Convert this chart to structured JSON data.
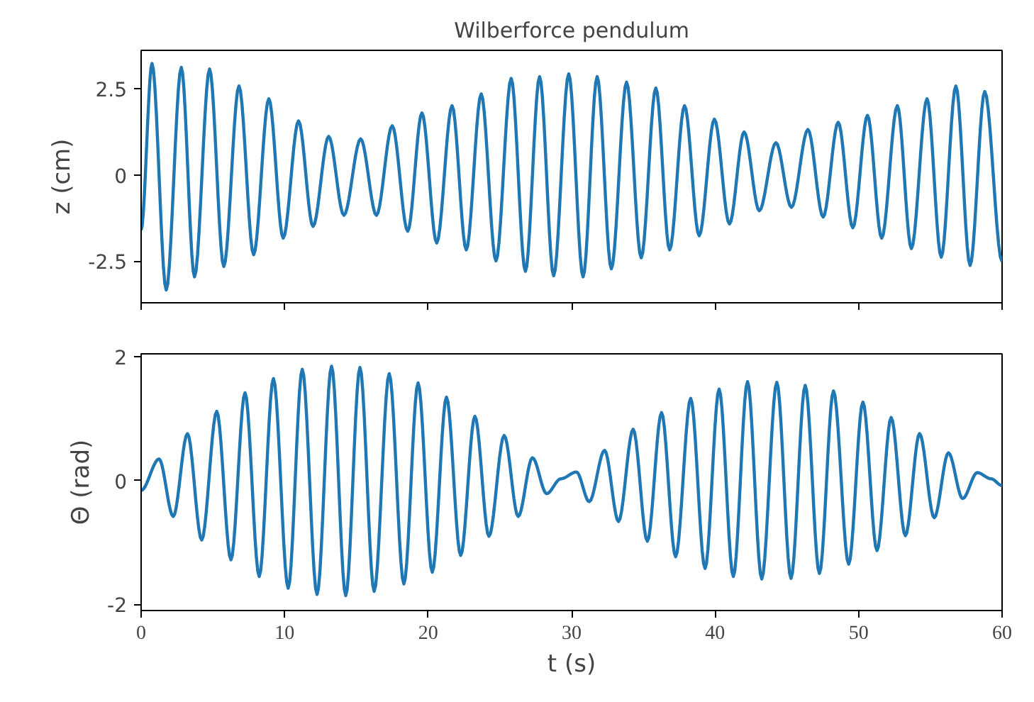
{
  "chart_data": [
    {
      "type": "line",
      "title": "Wilberforce pendulum",
      "ylabel": "z (cm)",
      "xlim": [
        0,
        60
      ],
      "xticks": [
        0,
        10,
        20,
        30,
        40,
        50,
        60
      ],
      "ylim": [
        -3.7,
        3.6
      ],
      "yticks": [
        2.5,
        0,
        -2.5
      ],
      "tick_labels": "y",
      "grid": false,
      "line_style": "solid",
      "series": [
        {
          "color": "#1f77b4",
          "x": [
            0,
            0.76,
            1.75,
            2.8,
            3.72,
            4.77,
            5.76,
            6.82,
            7.84,
            8.9,
            9.9,
            10.97,
            11.98,
            13.07,
            14.13,
            15.3,
            16.4,
            17.5,
            18.58,
            19.57,
            20.6,
            21.67,
            22.66,
            23.7,
            24.73,
            25.79,
            26.78,
            27.77,
            28.75,
            29.8,
            30.8,
            31.78,
            32.77,
            33.83,
            34.85,
            35.87,
            36.83,
            37.87,
            38.89,
            39.95,
            41.0,
            42.02,
            43.08,
            44.24,
            45.32,
            46.47,
            47.53,
            48.58,
            49.6,
            50.62,
            51.61,
            52.7,
            53.68,
            54.77,
            55.76,
            56.78,
            57.77,
            58.79,
            60
          ],
          "values": [
            -1.6,
            3.22,
            -3.33,
            3.11,
            -2.95,
            3.06,
            -2.65,
            2.57,
            -2.31,
            2.2,
            -1.83,
            1.56,
            -1.49,
            1.11,
            -1.17,
            1.04,
            -1.17,
            1.42,
            -1.63,
            1.79,
            -1.97,
            2.0,
            -2.17,
            2.34,
            -2.49,
            2.79,
            -2.79,
            2.84,
            -2.92,
            2.92,
            -2.95,
            2.84,
            -2.72,
            2.68,
            -2.4,
            2.51,
            -2.17,
            2.0,
            -1.76,
            1.61,
            -1.42,
            1.24,
            -1.04,
            0.93,
            -0.94,
            1.31,
            -1.22,
            1.52,
            -1.53,
            1.72,
            -1.83,
            2.0,
            -2.13,
            2.2,
            -2.38,
            2.57,
            -2.62,
            2.41,
            -2.51
          ]
        }
      ]
    },
    {
      "type": "line",
      "xlabel": "t (s)",
      "ylabel": "Θ (rad)",
      "xlim": [
        0,
        60
      ],
      "xticks": [
        0,
        10,
        20,
        30,
        40,
        50,
        60
      ],
      "ylim": [
        -2.1,
        2.05
      ],
      "yticks": [
        2,
        0,
        -2
      ],
      "grid": false,
      "line_style": "solid",
      "series": [
        {
          "color": "#1f77b4",
          "x": [
            0,
            1.25,
            2.24,
            3.23,
            4.22,
            5.27,
            6.26,
            7.24,
            8.23,
            9.22,
            10.25,
            11.23,
            12.26,
            13.27,
            14.26,
            15.25,
            16.24,
            17.29,
            18.31,
            19.3,
            20.29,
            21.28,
            22.27,
            23.26,
            24.24,
            25.3,
            26.28,
            27.27,
            28.26,
            29.25,
            30.34,
            31.23,
            32.3,
            33.27,
            34.29,
            35.28,
            36.27,
            37.25,
            38.3,
            39.3,
            40.28,
            41.27,
            42.26,
            43.25,
            44.3,
            45.29,
            46.28,
            47.27,
            48.25,
            49.31,
            50.3,
            51.28,
            52.27,
            53.26,
            54.25,
            55.27,
            56.26,
            57.25,
            58.27,
            59.23,
            60
          ],
          "values": [
            -0.16,
            0.35,
            -0.58,
            0.76,
            -0.96,
            1.12,
            -1.28,
            1.42,
            -1.55,
            1.65,
            -1.74,
            1.8,
            -1.84,
            1.85,
            -1.86,
            1.83,
            -1.79,
            1.73,
            -1.67,
            1.58,
            -1.48,
            1.35,
            -1.21,
            1.04,
            -0.9,
            0.73,
            -0.58,
            0.37,
            -0.21,
            0.03,
            0.14,
            -0.34,
            0.49,
            -0.66,
            0.83,
            -0.98,
            1.1,
            -1.23,
            1.33,
            -1.42,
            1.48,
            -1.55,
            1.6,
            -1.59,
            1.59,
            -1.58,
            1.54,
            -1.5,
            1.45,
            -1.35,
            1.27,
            -1.13,
            1.02,
            -0.89,
            0.76,
            -0.6,
            0.45,
            -0.29,
            0.13,
            0.03,
            -0.08
          ]
        }
      ]
    }
  ]
}
